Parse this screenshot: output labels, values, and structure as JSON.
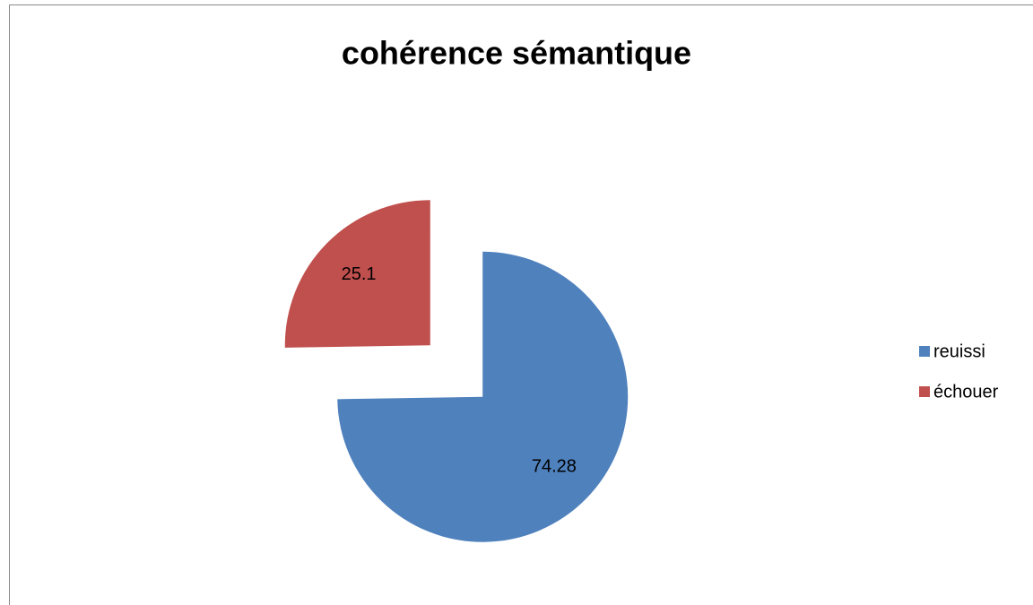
{
  "chart_data": {
    "type": "pie",
    "title": "cohérence sémantique",
    "categories": [
      "reuissi",
      "échouer"
    ],
    "values": [
      74.28,
      25.1
    ],
    "colors": [
      "#4f81bd",
      "#c0504d"
    ],
    "exploded": true,
    "legend": "right"
  }
}
